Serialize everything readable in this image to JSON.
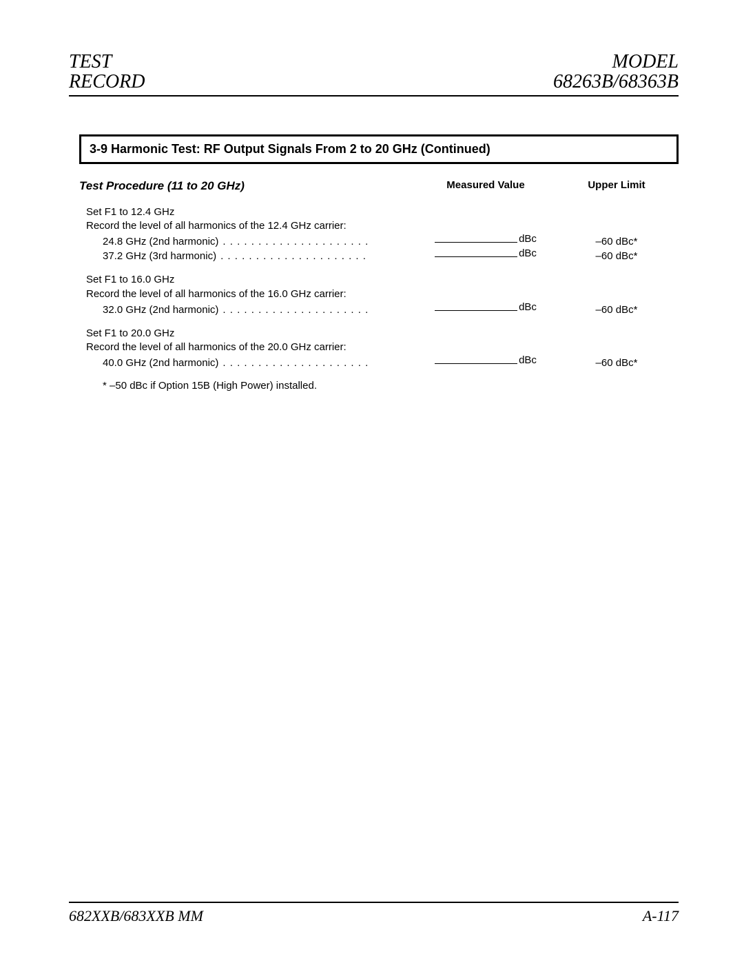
{
  "header": {
    "left_line1": "TEST",
    "left_line2": "RECORD",
    "right_line1": "MODEL",
    "right_line2": "68263B/68363B"
  },
  "section": {
    "title": "3-9 Harmonic Test: RF Output Signals From 2 to 20 GHz (Continued)"
  },
  "columns": {
    "procedure": "Test Procedure (11 to 20 GHz)",
    "measured": "Measured Value",
    "limit": "Upper Limit"
  },
  "unit": "dBc",
  "groups": [
    {
      "instr1": "Set F1 to 12.4 GHz",
      "instr2": "Record the level of all harmonics of the 12.4 GHz carrier:",
      "harmonics": [
        {
          "label": "24.8 GHz (2nd harmonic)",
          "limit": "–60 dBc*"
        },
        {
          "label": "37.2 GHz (3rd harmonic)",
          "limit": "–60 dBc*"
        }
      ]
    },
    {
      "instr1": "Set F1 to 16.0 GHz",
      "instr2": "Record the level of all harmonics of the 16.0 GHz carrier:",
      "harmonics": [
        {
          "label": "32.0 GHz (2nd harmonic)",
          "limit": "–60 dBc*"
        }
      ]
    },
    {
      "instr1": "Set F1 to 20.0 GHz",
      "instr2": "Record the level of all harmonics of the 20.0 GHz carrier:",
      "harmonics": [
        {
          "label": "40.0 GHz (2nd harmonic)",
          "limit": "–60 dBc*"
        }
      ]
    }
  ],
  "footnote": "* –50 dBc if Option 15B (High Power) installed.",
  "footer": {
    "left": "682XXB/683XXB MM",
    "right": "A-117"
  },
  "dot_filler": ".  .  .  .  .  .  .  .  .  .  .  .  .  .  .  .  .  .  .  .  ."
}
